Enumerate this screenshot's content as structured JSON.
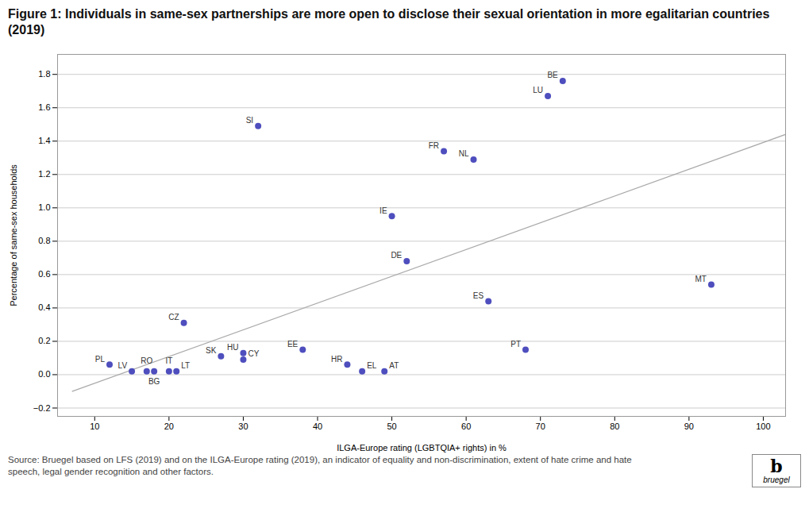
{
  "chart_data": {
    "type": "scatter",
    "title": "Figure 1: Individuals in same-sex partnerships are more open to disclose their sexual orientation in more egalitarian countries (2019)",
    "xlabel": "ILGA-Europe rating (LGBTQIA+ rights) in %",
    "ylabel": "Percentage of same-sex households",
    "caption": "Source: Bruegel based on LFS (2019) and on the ILGA-Europe rating (2019), an indicator of equality and non-discrimination, extent of hate crime and hate\nspeech, legal gender recognition and other factors.",
    "annotations": [
      "b",
      "bruegel"
    ],
    "xlim": [
      5,
      103
    ],
    "ylim": [
      -0.25,
      1.92
    ],
    "xticks": [
      10,
      20,
      30,
      40,
      50,
      60,
      70,
      80,
      90,
      100
    ],
    "yticks": [
      {
        "value": -0.2,
        "label": "−0.2"
      },
      {
        "value": 0.0,
        "label": "0.0"
      },
      0.2,
      0.4,
      0.6,
      0.8,
      {
        "value": 1.0,
        "label": "1.0"
      },
      1.2,
      1.4,
      1.6,
      1.8
    ],
    "grid": "y",
    "series": [
      {
        "type": "line",
        "color": "#aaaaaa",
        "x": [
          7,
          103
        ],
        "values": [
          -0.1,
          1.44
        ]
      },
      {
        "type": "scatter",
        "color": "#4444bb",
        "point_labels": [
          "BE",
          "LU",
          "SI",
          "FR",
          "NL",
          "IE",
          "DE",
          "MT",
          "ES",
          "CZ",
          "PT",
          "HU",
          "SK",
          "CY",
          "EE",
          "HR",
          "EL",
          "AT",
          "PL",
          "LV",
          "RO",
          "BG",
          "IT",
          "LT"
        ],
        "x": [
          73,
          71,
          32,
          57,
          61,
          50,
          52,
          93,
          63,
          22,
          68,
          30,
          27,
          30,
          38,
          44,
          46,
          49,
          12,
          15,
          17,
          18,
          20,
          21
        ],
        "values": [
          1.76,
          1.67,
          1.49,
          1.34,
          1.29,
          0.95,
          0.68,
          0.54,
          0.44,
          0.31,
          0.15,
          0.13,
          0.11,
          0.09,
          0.15,
          0.06,
          0.02,
          0.02,
          0.06,
          0.02,
          0.02,
          0.02,
          0.02,
          0.02
        ]
      }
    ]
  }
}
